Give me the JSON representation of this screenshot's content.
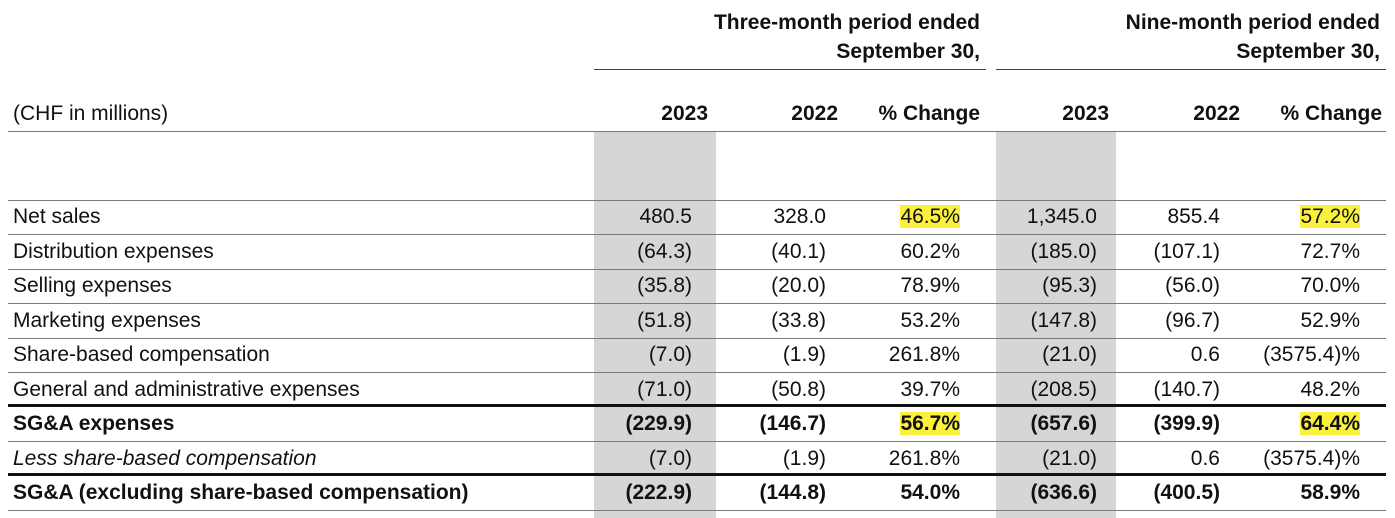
{
  "table": {
    "periods": [
      {
        "line1": "Three-month period ended",
        "line2": "September 30,"
      },
      {
        "line1": "Nine-month period ended",
        "line2": "September 30,"
      }
    ],
    "unit_label": "(CHF in millions)",
    "columns": [
      "2023",
      "2022",
      "% Change",
      "2023",
      "2022",
      "% Change"
    ],
    "rows": [
      {
        "label": "Net sales",
        "style": "normal",
        "cells": [
          "480.5",
          "328.0",
          "46.5%",
          "1,345.0",
          "855.4",
          "57.2%"
        ],
        "highlight": [
          2,
          5
        ]
      },
      {
        "label": "Distribution expenses",
        "style": "normal",
        "cells": [
          "(64.3)",
          "(40.1)",
          "60.2%",
          "(185.0)",
          "(107.1)",
          "72.7%"
        ],
        "highlight": []
      },
      {
        "label": "Selling expenses",
        "style": "normal",
        "cells": [
          "(35.8)",
          "(20.0)",
          "78.9%",
          "(95.3)",
          "(56.0)",
          "70.0%"
        ],
        "highlight": []
      },
      {
        "label": "Marketing expenses",
        "style": "normal",
        "cells": [
          "(51.8)",
          "(33.8)",
          "53.2%",
          "(147.8)",
          "(96.7)",
          "52.9%"
        ],
        "highlight": []
      },
      {
        "label": "Share-based compensation",
        "style": "normal",
        "cells": [
          "(7.0)",
          "(1.9)",
          "261.8%",
          "(21.0)",
          "0.6",
          "(3575.4)%"
        ],
        "highlight": []
      },
      {
        "label": "General and administrative expenses",
        "style": "normal",
        "cells": [
          "(71.0)",
          "(50.8)",
          "39.7%",
          "(208.5)",
          "(140.7)",
          "48.2%"
        ],
        "highlight": []
      },
      {
        "label": "SG&A expenses",
        "style": "bold",
        "cells": [
          "(229.9)",
          "(146.7)",
          "56.7%",
          "(657.6)",
          "(399.9)",
          "64.4%"
        ],
        "highlight": [
          2,
          5
        ]
      },
      {
        "label": "Less share-based compensation",
        "style": "italic",
        "cells": [
          "(7.0)",
          "(1.9)",
          "261.8%",
          "(21.0)",
          "0.6",
          "(3575.4)%"
        ],
        "highlight": []
      },
      {
        "label": "SG&A (excluding share-based compensation)",
        "style": "bold",
        "cells": [
          "(222.9)",
          "(144.8)",
          "54.0%",
          "(636.6)",
          "(400.5)",
          "58.9%"
        ],
        "highlight": []
      }
    ],
    "colors": {
      "highlight": "#fbf03c",
      "shade": "#d6d6d6"
    }
  }
}
